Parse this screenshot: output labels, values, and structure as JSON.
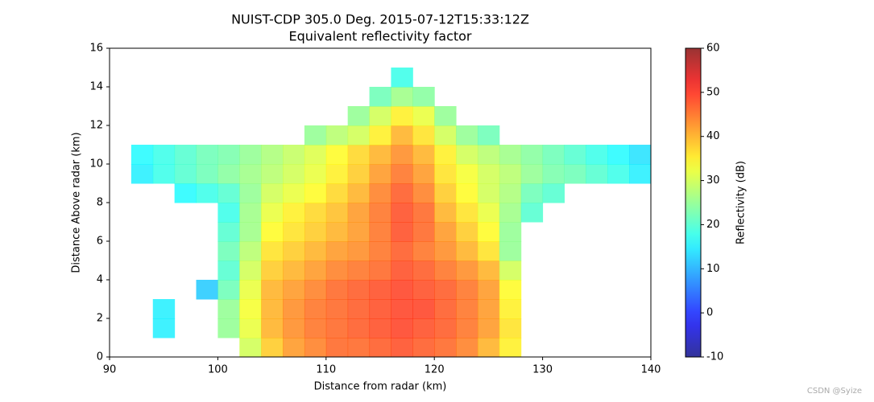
{
  "chart_data": {
    "type": "heatmap",
    "title": "NUIST-CDP 305.0 Deg. 2015-07-12T15:33:12Z",
    "subtitle": "Equivalent reflectivity factor",
    "x_label": "Distance from radar (km)",
    "y_label": "Distance Above radar  (km)",
    "colorbar_label": "Reflectivity (dB)",
    "colormap": "jet",
    "clim": [
      -10,
      60
    ],
    "cticks": [
      -10,
      0,
      10,
      20,
      30,
      40,
      50,
      60
    ],
    "xlim": [
      90,
      140
    ],
    "xticks": [
      90,
      100,
      110,
      120,
      130,
      140
    ],
    "ylim": [
      0,
      16
    ],
    "yticks": [
      0,
      2,
      4,
      6,
      8,
      10,
      12,
      14,
      16
    ],
    "xbins": [
      92,
      94,
      96,
      98,
      100,
      102,
      104,
      106,
      108,
      110,
      112,
      114,
      116,
      118,
      120,
      122,
      124,
      126,
      128,
      130,
      132,
      134,
      136,
      138,
      140
    ],
    "ybins": [
      0,
      1,
      2,
      3,
      4,
      5,
      6,
      7,
      8,
      9,
      10,
      11,
      12,
      13,
      14,
      15
    ],
    "z": [
      [
        null,
        null,
        null,
        null,
        null,
        30,
        38,
        42,
        44,
        46,
        46,
        47,
        48,
        47,
        46,
        44,
        40,
        35,
        null,
        null,
        null,
        null,
        null,
        null
      ],
      [
        null,
        15,
        null,
        null,
        25,
        32,
        40,
        43,
        45,
        46,
        47,
        48,
        49,
        48,
        47,
        45,
        42,
        36,
        null,
        null,
        null,
        null,
        null,
        null
      ],
      [
        null,
        15,
        null,
        null,
        25,
        33,
        40,
        43,
        45,
        46,
        47,
        48,
        49,
        49,
        47,
        45,
        42,
        35,
        null,
        null,
        null,
        null,
        null,
        null
      ],
      [
        null,
        null,
        null,
        12,
        22,
        32,
        40,
        42,
        44,
        46,
        47,
        48,
        49,
        48,
        47,
        45,
        42,
        34,
        null,
        null,
        null,
        null,
        null,
        null
      ],
      [
        null,
        null,
        null,
        null,
        20,
        30,
        38,
        40,
        42,
        44,
        45,
        46,
        48,
        47,
        45,
        43,
        40,
        30,
        null,
        null,
        null,
        null,
        null,
        null
      ],
      [
        null,
        null,
        null,
        null,
        22,
        28,
        36,
        38,
        40,
        42,
        43,
        45,
        47,
        45,
        43,
        40,
        36,
        25,
        null,
        null,
        null,
        null,
        null,
        null
      ],
      [
        null,
        null,
        null,
        null,
        20,
        26,
        34,
        36,
        38,
        40,
        42,
        45,
        48,
        46,
        42,
        38,
        34,
        25,
        null,
        null,
        null,
        null,
        null,
        null
      ],
      [
        null,
        null,
        null,
        null,
        18,
        26,
        32,
        35,
        37,
        39,
        42,
        45,
        48,
        46,
        40,
        36,
        32,
        26,
        20,
        null,
        null,
        null,
        null,
        null
      ],
      [
        null,
        null,
        16,
        18,
        20,
        25,
        30,
        32,
        34,
        37,
        40,
        44,
        47,
        44,
        38,
        34,
        30,
        27,
        22,
        20,
        null,
        null,
        null,
        null
      ],
      [
        15,
        18,
        20,
        22,
        24,
        26,
        28,
        30,
        32,
        35,
        38,
        42,
        45,
        42,
        36,
        33,
        30,
        28,
        25,
        23,
        22,
        20,
        18,
        15
      ],
      [
        16,
        18,
        20,
        22,
        23,
        25,
        27,
        29,
        31,
        34,
        37,
        40,
        43,
        40,
        35,
        30,
        28,
        26,
        24,
        22,
        20,
        18,
        16,
        14
      ],
      [
        null,
        null,
        null,
        null,
        null,
        null,
        null,
        null,
        25,
        28,
        30,
        35,
        40,
        36,
        30,
        25,
        22,
        null,
        null,
        null,
        null,
        null,
        null,
        null
      ],
      [
        null,
        null,
        null,
        null,
        null,
        null,
        null,
        null,
        null,
        null,
        25,
        30,
        35,
        32,
        25,
        null,
        null,
        null,
        null,
        null,
        null,
        null,
        null,
        null
      ],
      [
        null,
        null,
        null,
        null,
        null,
        null,
        null,
        null,
        null,
        null,
        null,
        22,
        26,
        24,
        null,
        null,
        null,
        null,
        null,
        null,
        null,
        null,
        null,
        null
      ],
      [
        null,
        null,
        null,
        null,
        null,
        null,
        null,
        null,
        null,
        null,
        null,
        null,
        18,
        null,
        null,
        null,
        null,
        null,
        null,
        null,
        null,
        null,
        null,
        null
      ]
    ],
    "watermark": "CSDN @Syize"
  }
}
